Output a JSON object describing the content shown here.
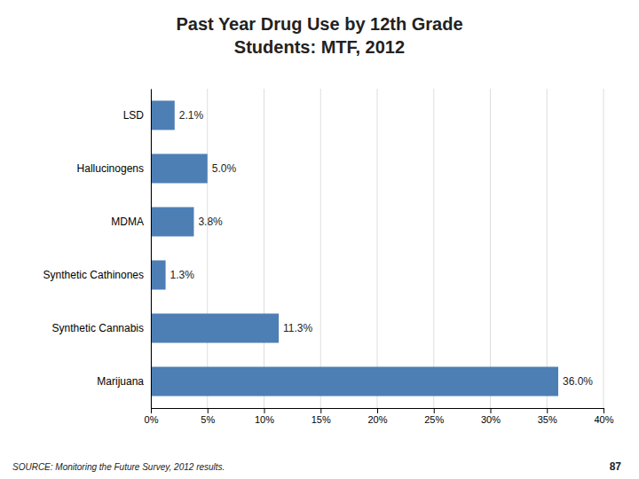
{
  "chart_data": {
    "type": "bar",
    "orientation": "horizontal",
    "title": "Past Year Drug Use by 12th Grade\nStudents: MTF, 2012",
    "categories": [
      "LSD",
      "Hallucinogens",
      "MDMA",
      "Synthetic Cathinones",
      "Synthetic Cannabis",
      "Marijuana"
    ],
    "values": [
      2.1,
      5.0,
      3.8,
      1.3,
      11.3,
      36.0
    ],
    "value_labels": [
      "2.1%",
      "5.0%",
      "3.8%",
      "1.3%",
      "11.3%",
      "36.0%"
    ],
    "data_labels": true,
    "color": "#4d7fb5",
    "xlim": [
      0,
      40
    ],
    "xticks": [
      {
        "value": 0,
        "label": "0%"
      },
      {
        "value": 5,
        "label": "5%"
      },
      {
        "value": 10,
        "label": "10%"
      },
      {
        "value": 15,
        "label": "15%"
      },
      {
        "value": 20,
        "label": "20%"
      },
      {
        "value": 25,
        "label": "25%"
      },
      {
        "value": 30,
        "label": "30%"
      },
      {
        "value": 35,
        "label": "35%"
      },
      {
        "value": 40,
        "label": "40%"
      }
    ],
    "grid": true,
    "source": "SOURCE: Monitoring the Future Survey, 2012 results.",
    "page_number": "87"
  }
}
